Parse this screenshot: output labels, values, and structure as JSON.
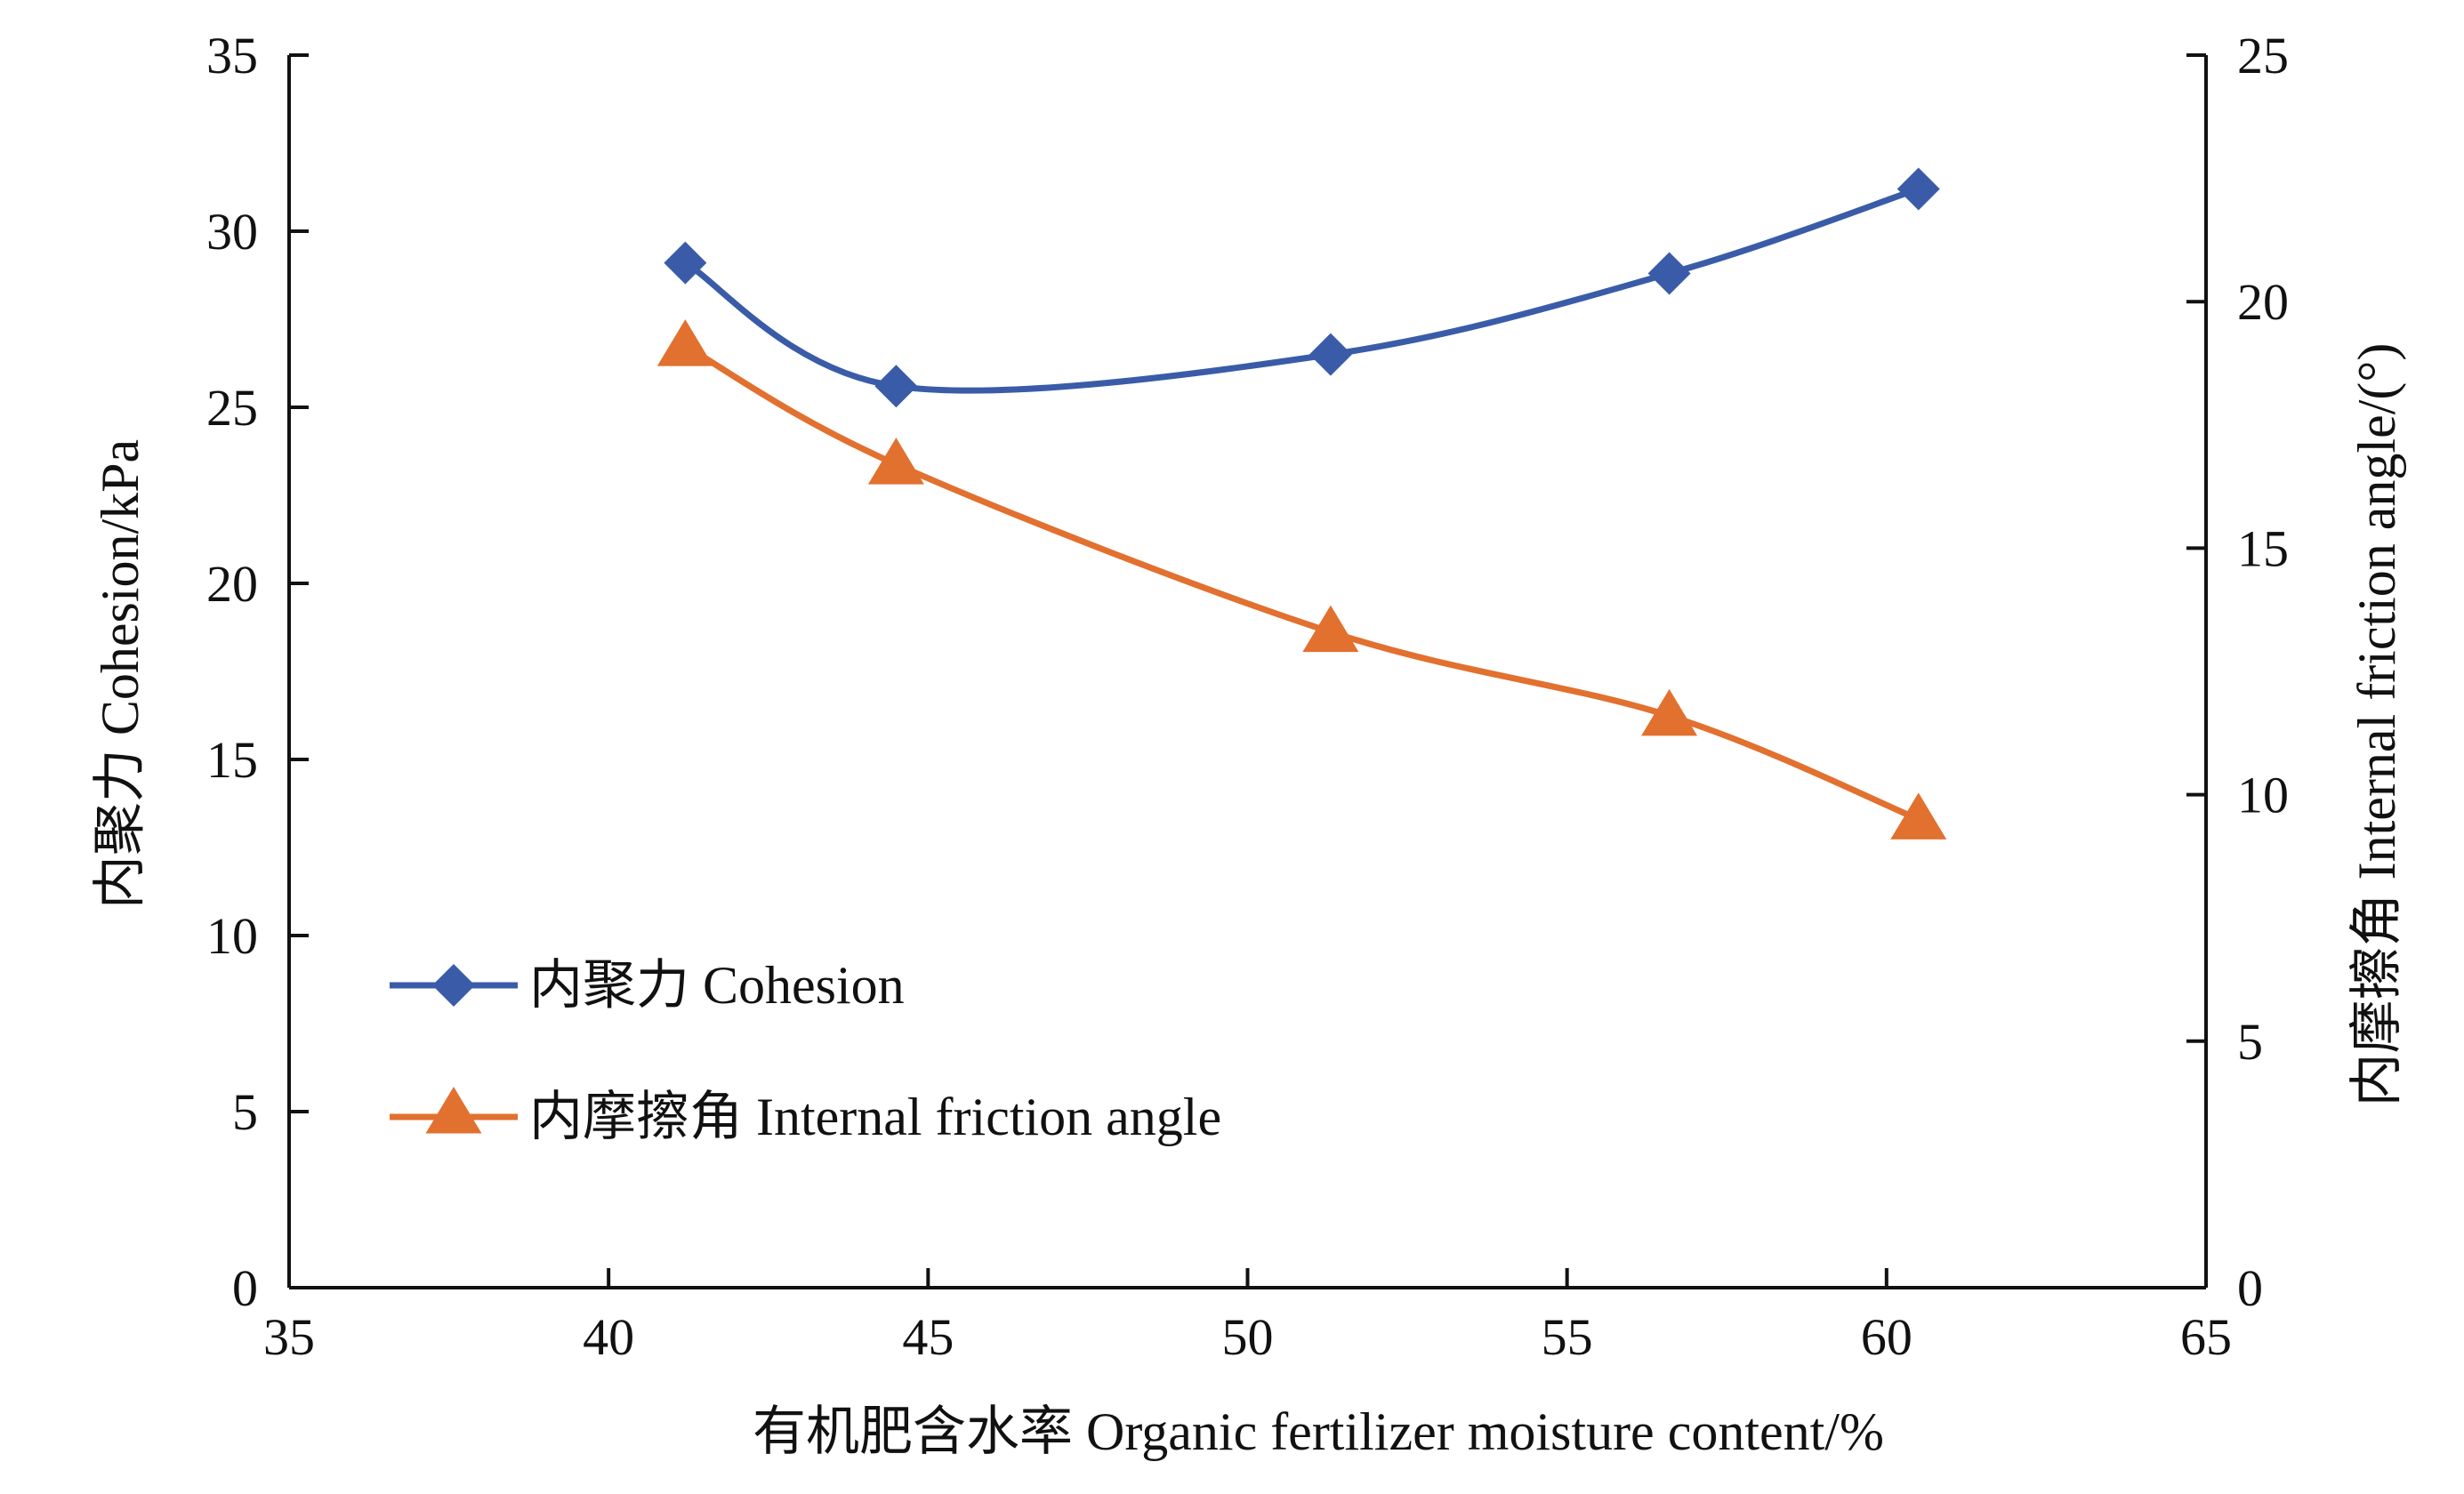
{
  "chart_data": {
    "type": "line",
    "xlabel": "有机肥含水率 Organic fertilizer moisture content/%",
    "ylabel_left": "内聚力 Cohesion/kPa",
    "ylabel_right": "内摩擦角 Internal friction angle/(°)",
    "xlim": [
      35,
      65
    ],
    "ylim_left": [
      0,
      35
    ],
    "ylim_right": [
      0,
      25
    ],
    "x_ticks": [
      35,
      40,
      45,
      50,
      55,
      60,
      65
    ],
    "y_ticks_left": [
      0,
      5,
      10,
      15,
      20,
      25,
      30,
      35
    ],
    "y_ticks_right": [
      0,
      5,
      10,
      15,
      20,
      25
    ],
    "grid": false,
    "legend_position": "bottom-left",
    "series": [
      {
        "name": "内聚力 Cohesion",
        "axis": "left",
        "marker": "diamond",
        "color": "#3a5ca8",
        "x": [
          41.2,
          44.5,
          51.3,
          56.6,
          60.5
        ],
        "y": [
          29.1,
          25.6,
          26.5,
          28.8,
          31.2
        ]
      },
      {
        "name": "内摩擦角 Internal friction angle",
        "axis": "right",
        "marker": "triangle",
        "color": "#e2702f",
        "x": [
          41.2,
          44.5,
          51.3,
          56.6,
          60.5
        ],
        "y": [
          19.1,
          16.7,
          13.3,
          11.6,
          9.5
        ]
      }
    ]
  }
}
